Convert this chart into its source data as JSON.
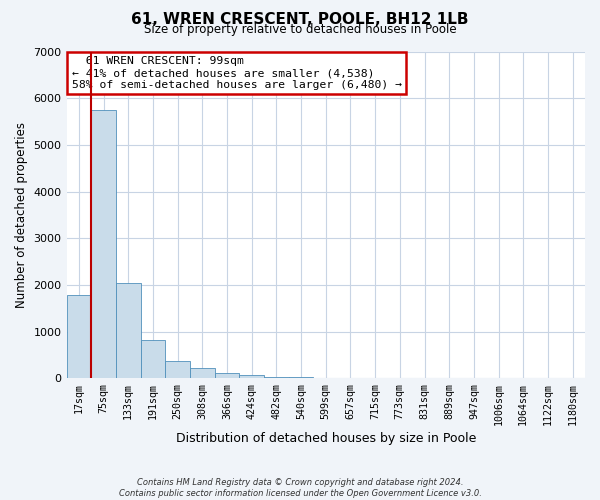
{
  "title": "61, WREN CRESCENT, POOLE, BH12 1LB",
  "subtitle": "Size of property relative to detached houses in Poole",
  "xlabel": "Distribution of detached houses by size in Poole",
  "ylabel": "Number of detached properties",
  "bar_labels": [
    "17sqm",
    "75sqm",
    "133sqm",
    "191sqm",
    "250sqm",
    "308sqm",
    "366sqm",
    "424sqm",
    "482sqm",
    "540sqm",
    "599sqm",
    "657sqm",
    "715sqm",
    "773sqm",
    "831sqm",
    "889sqm",
    "947sqm",
    "1006sqm",
    "1064sqm",
    "1122sqm",
    "1180sqm"
  ],
  "bar_heights": [
    1780,
    5750,
    2050,
    820,
    370,
    220,
    110,
    60,
    35,
    20,
    10,
    5,
    3,
    0,
    0,
    0,
    0,
    0,
    0,
    0,
    0
  ],
  "bar_color": "#c9dcea",
  "bar_edge_color": "#5090bb",
  "marker_label": "61 WREN CRESCENT: 99sqm",
  "smaller_pct": "41%",
  "smaller_n": "4,538",
  "larger_pct": "58%",
  "larger_n": "6,480",
  "vline_color": "#bb0000",
  "box_edge_color": "#cc0000",
  "ylim": [
    0,
    7000
  ],
  "yticks": [
    0,
    1000,
    2000,
    3000,
    4000,
    5000,
    6000,
    7000
  ],
  "vline_position": 0.5,
  "footer_line1": "Contains HM Land Registry data © Crown copyright and database right 2024.",
  "footer_line2": "Contains public sector information licensed under the Open Government Licence v3.0.",
  "bg_color": "#f0f4f9",
  "plot_bg_color": "#ffffff",
  "grid_color": "#c8d4e4"
}
